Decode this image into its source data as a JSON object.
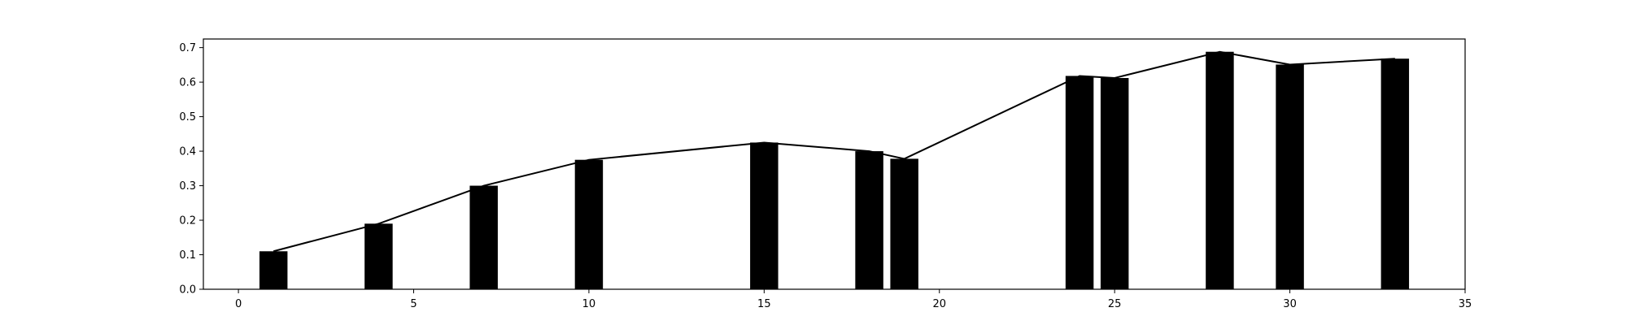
{
  "chart_data": {
    "type": "bar",
    "title": "",
    "xlabel": "",
    "ylabel": "",
    "xlim": [
      -1,
      35
    ],
    "ylim": [
      0,
      0.725
    ],
    "x_ticks": [
      0,
      5,
      10,
      15,
      20,
      25,
      30,
      35
    ],
    "y_ticks": [
      0.0,
      0.1,
      0.2,
      0.3,
      0.4,
      0.5,
      0.6,
      0.7
    ],
    "x_tick_labels": [
      "0",
      "5",
      "10",
      "15",
      "20",
      "25",
      "30",
      "35"
    ],
    "y_tick_labels": [
      "0.0",
      "0.1",
      "0.2",
      "0.3",
      "0.4",
      "0.5",
      "0.6",
      "0.7"
    ],
    "grid": false,
    "legend": "none",
    "bar_width": 0.8,
    "bar_color": "#000000",
    "line_color": "#000000",
    "x": [
      1,
      4,
      7,
      10,
      15,
      18,
      19,
      24,
      25,
      28,
      30,
      33
    ],
    "values": [
      0.11,
      0.19,
      0.3,
      0.375,
      0.425,
      0.4,
      0.378,
      0.618,
      0.612,
      0.688,
      0.651,
      0.668
    ]
  }
}
